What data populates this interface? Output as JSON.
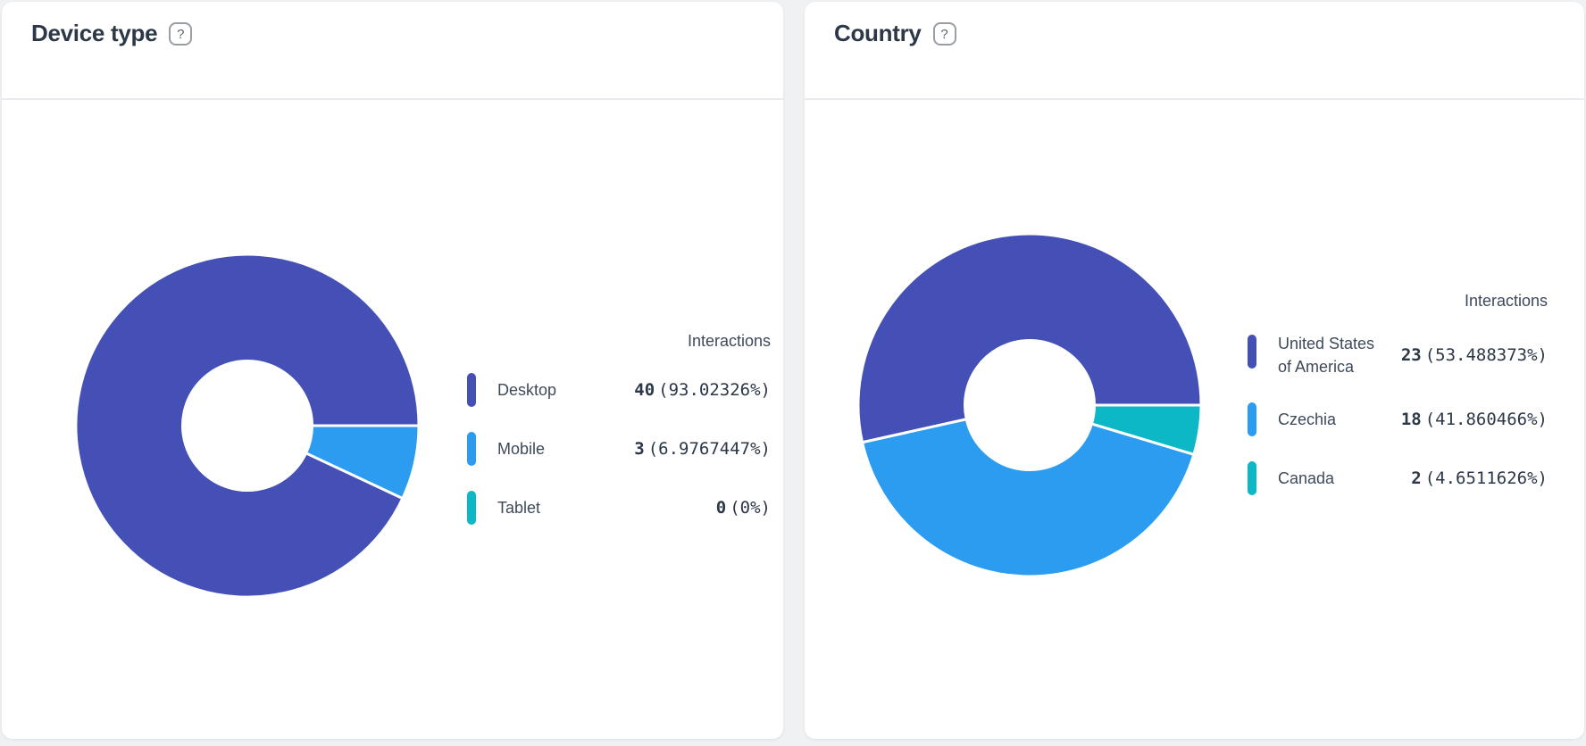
{
  "page": {
    "background_color": "#eff1f3"
  },
  "cards": [
    {
      "title": "Device type",
      "help_icon": "?",
      "legend_header": "Interactions",
      "chart_data": {
        "type": "pie",
        "title": "Device type",
        "value_label": "Interactions",
        "categories": [
          "Desktop",
          "Mobile",
          "Tablet"
        ],
        "values": [
          40,
          3,
          0
        ],
        "percentages": [
          93.02326,
          6.9767447,
          0
        ],
        "colors": [
          "#4450b6",
          "#2b9cf0",
          "#0db8c6"
        ],
        "donut": {
          "hole_ratio": 0.38,
          "start_angle_deg": 0,
          "direction": "counterclockwise"
        }
      },
      "legend": {
        "items": [
          {
            "label": "Desktop",
            "count": "40",
            "pct": "(93.02326%)"
          },
          {
            "label": "Mobile",
            "count": "3",
            "pct": "(6.9767447%)"
          },
          {
            "label": "Tablet",
            "count": "0",
            "pct": "(0%)"
          }
        ]
      }
    },
    {
      "title": "Country",
      "help_icon": "?",
      "legend_header": "Interactions",
      "chart_data": {
        "type": "pie",
        "title": "Country",
        "value_label": "Interactions",
        "categories": [
          "United States of America",
          "Czechia",
          "Canada"
        ],
        "values": [
          23,
          18,
          2
        ],
        "percentages": [
          53.488373,
          41.860466,
          4.6511626
        ],
        "colors": [
          "#4450b6",
          "#2b9cf0",
          "#0db8c6"
        ],
        "donut": {
          "hole_ratio": 0.38,
          "start_angle_deg": 0,
          "direction": "counterclockwise"
        }
      },
      "legend": {
        "items": [
          {
            "label": "United States of America",
            "count": "23",
            "pct": "(53.488373%)"
          },
          {
            "label": "Czechia",
            "count": "18",
            "pct": "(41.860466%)"
          },
          {
            "label": "Canada",
            "count": "2",
            "pct": "(4.6511626%)"
          }
        ]
      }
    }
  ]
}
